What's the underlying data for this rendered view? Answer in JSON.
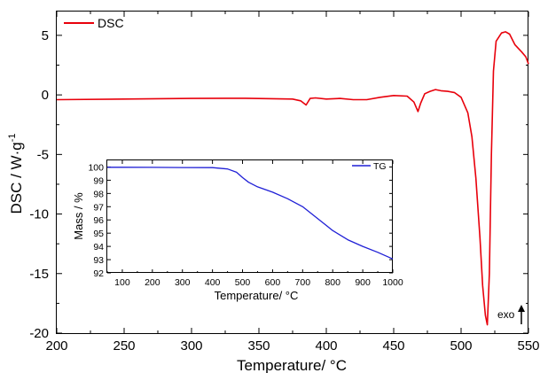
{
  "chart_data": [
    {
      "type": "line",
      "xlabel": "Temperature/ °C",
      "ylabel": "DSC / W·g",
      "ylabel_sup": "-1",
      "xlim": [
        200,
        550
      ],
      "ylim": [
        -20,
        7
      ],
      "xticks": [
        200,
        250,
        300,
        350,
        400,
        450,
        500,
        550
      ],
      "yticks": [
        5,
        0,
        -5,
        -10,
        -15,
        -20
      ],
      "annotation": "exo",
      "series": [
        {
          "name": "DSC",
          "color": "#e8000b",
          "x": [
            200,
            250,
            300,
            340,
            375,
            381,
            385,
            388,
            392,
            400,
            410,
            420,
            430,
            440,
            450,
            460,
            465,
            468,
            470,
            473,
            477,
            481,
            485,
            490,
            495,
            500,
            505,
            508,
            511,
            514,
            516,
            518,
            519.5,
            521,
            522.5,
            524,
            526,
            530,
            533,
            536,
            540,
            545,
            548,
            550
          ],
          "y": [
            -0.4,
            -0.35,
            -0.3,
            -0.28,
            -0.35,
            -0.5,
            -0.85,
            -0.3,
            -0.25,
            -0.35,
            -0.3,
            -0.4,
            -0.4,
            -0.2,
            -0.05,
            -0.1,
            -0.6,
            -1.4,
            -0.7,
            0.1,
            0.3,
            0.45,
            0.35,
            0.3,
            0.2,
            -0.2,
            -1.5,
            -3.5,
            -7,
            -12,
            -16,
            -18.5,
            -19.3,
            -15,
            -5,
            2,
            4.5,
            5.2,
            5.3,
            5.1,
            4.2,
            3.6,
            3.2,
            2.6
          ]
        }
      ]
    },
    {
      "type": "line",
      "xlabel": "Temperature/ °C",
      "ylabel": "Mass / %",
      "xlim": [
        50,
        1000
      ],
      "ylim": [
        92,
        100.5
      ],
      "xticks": [
        100,
        200,
        300,
        400,
        500,
        600,
        700,
        800,
        900,
        1000
      ],
      "yticks": [
        100,
        99,
        98,
        97,
        96,
        95,
        94,
        93,
        92
      ],
      "series": [
        {
          "name": "TG",
          "color": "#1f1fd6",
          "x": [
            50,
            100,
            200,
            300,
            400,
            450,
            480,
            500,
            520,
            550,
            600,
            650,
            700,
            750,
            800,
            850,
            900,
            950,
            1000
          ],
          "y": [
            99.98,
            99.98,
            99.97,
            99.96,
            99.95,
            99.85,
            99.6,
            99.2,
            98.85,
            98.5,
            98.1,
            97.6,
            97.0,
            96.1,
            95.2,
            94.5,
            94.0,
            93.55,
            93.05
          ]
        }
      ]
    }
  ]
}
